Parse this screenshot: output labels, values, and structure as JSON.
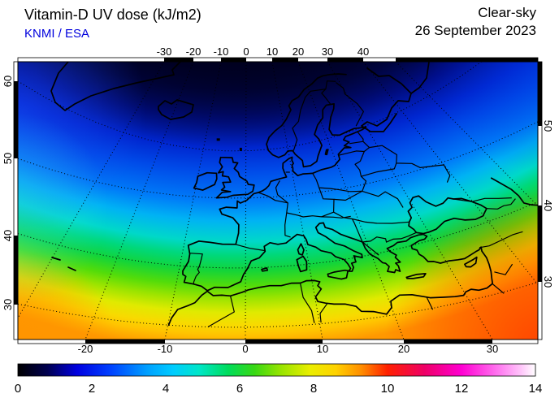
{
  "header": {
    "title": "Vitamin-D UV dose (kJ/m2)",
    "source": "KNMI / ESA",
    "condition": "Clear-sky",
    "date": "26 September 2023",
    "source_color": "#0000dd"
  },
  "map": {
    "axes": {
      "top": [
        "-30",
        "-20",
        "-10",
        "0",
        "10",
        "20",
        "30",
        "40"
      ],
      "bottom": [
        "-20",
        "-10",
        "0",
        "10",
        "20",
        "30"
      ],
      "left": [
        "60",
        "50",
        "40",
        "30"
      ],
      "right": [
        "50",
        "40",
        "30"
      ]
    }
  },
  "colorbar": {
    "min": 0,
    "max": 14,
    "labels": [
      "0",
      "2",
      "4",
      "6",
      "8",
      "10",
      "12",
      "14"
    ],
    "stops": [
      [
        0,
        "#000000"
      ],
      [
        0.8,
        "#000050"
      ],
      [
        1.6,
        "#0000e0"
      ],
      [
        2.5,
        "#0040ff"
      ],
      [
        3.5,
        "#00a0ff"
      ],
      [
        4.2,
        "#00ccff"
      ],
      [
        4.9,
        "#00e6c8"
      ],
      [
        5.7,
        "#00dc5a"
      ],
      [
        6.4,
        "#38d814"
      ],
      [
        7.1,
        "#96e400"
      ],
      [
        7.9,
        "#eaee00"
      ],
      [
        8.6,
        "#ffd200"
      ],
      [
        9.3,
        "#ff8c00"
      ],
      [
        10,
        "#ff2000"
      ],
      [
        11,
        "#ee0066"
      ],
      [
        12,
        "#ff00d2"
      ],
      [
        13,
        "#ff78f0"
      ],
      [
        13.6,
        "#ffc4fa"
      ],
      [
        14,
        "#ffffff"
      ]
    ]
  },
  "chart_data": {
    "type": "heatmap",
    "title": "Vitamin-D UV dose (kJ/m2)",
    "subtitle": "Clear-sky, 26 September 2023, KNMI / ESA",
    "region": "Europe / North Africa",
    "units": "kJ/m2",
    "colorbar_range": [
      0,
      14
    ],
    "lon_range": [
      -35,
      52
    ],
    "lat_range": [
      26,
      72
    ],
    "approx_dose_by_latitude": [
      [
        70,
        0.8
      ],
      [
        60,
        1.8
      ],
      [
        50,
        3.2
      ],
      [
        45,
        4.2
      ],
      [
        40,
        5.5
      ],
      [
        35,
        7.0
      ],
      [
        30,
        8.5
      ],
      [
        27,
        9.5
      ]
    ]
  }
}
